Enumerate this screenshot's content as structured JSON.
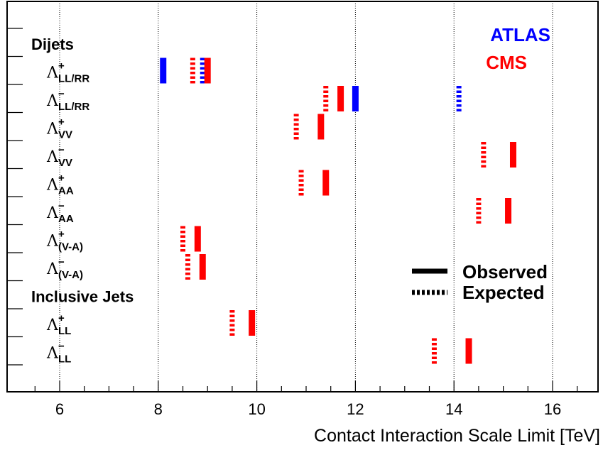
{
  "chart_data": {
    "type": "scatter",
    "xlabel": "Contact Interaction Scale Limit [TeV]",
    "xlim": [
      5.0,
      17.0
    ],
    "x_ticks": [
      6,
      8,
      10,
      12,
      14,
      16
    ],
    "x_tick_labels": [
      "6",
      "8",
      "10",
      "12",
      "14",
      "16"
    ],
    "grid": "vertical dotted",
    "legend": {
      "experiments": [
        {
          "name": "ATLAS",
          "color": "#0000ff"
        },
        {
          "name": "CMS",
          "color": "#ff0000"
        }
      ],
      "styles": [
        {
          "label": "Observed",
          "style": "solid"
        },
        {
          "label": "Expected",
          "style": "dashed"
        }
      ],
      "placement": "right"
    },
    "groups": [
      {
        "label": "Dijets",
        "row": 0
      },
      {
        "label": "Inclusive Jets",
        "row": 9
      }
    ],
    "rows": [
      {
        "sign": "+",
        "sub": "LL/RR",
        "row": 1,
        "ATLAS": {
          "observed": 8.1,
          "expected": 8.9
        },
        "CMS": {
          "observed": 9.0,
          "expected": 8.7
        }
      },
      {
        "sign": "−",
        "sub": "LL/RR",
        "row": 2,
        "ATLAS": {
          "observed": 12.0,
          "expected": 14.1
        },
        "CMS": {
          "observed": 11.7,
          "expected": 11.4
        }
      },
      {
        "sign": "+",
        "sub": "VV",
        "row": 3,
        "CMS": {
          "observed": 11.3,
          "expected": 10.8
        }
      },
      {
        "sign": "−",
        "sub": "VV",
        "row": 4,
        "CMS": {
          "observed": 15.2,
          "expected": 14.6
        }
      },
      {
        "sign": "+",
        "sub": "AA",
        "row": 5,
        "CMS": {
          "observed": 11.4,
          "expected": 10.9
        }
      },
      {
        "sign": "−",
        "sub": "AA",
        "row": 6,
        "CMS": {
          "observed": 15.1,
          "expected": 14.5
        }
      },
      {
        "sign": "+",
        "sub": "(V-A)",
        "row": 7,
        "CMS": {
          "observed": 8.8,
          "expected": 8.5
        }
      },
      {
        "sign": "−",
        "sub": "(V-A)",
        "row": 8,
        "CMS": {
          "observed": 8.9,
          "expected": 8.6
        }
      },
      {
        "sign": "+",
        "sub": "LL",
        "row": 10,
        "CMS": {
          "observed": 9.9,
          "expected": 9.5
        }
      },
      {
        "sign": "−",
        "sub": "LL",
        "row": 11,
        "CMS": {
          "observed": 14.3,
          "expected": 13.6
        }
      }
    ]
  }
}
